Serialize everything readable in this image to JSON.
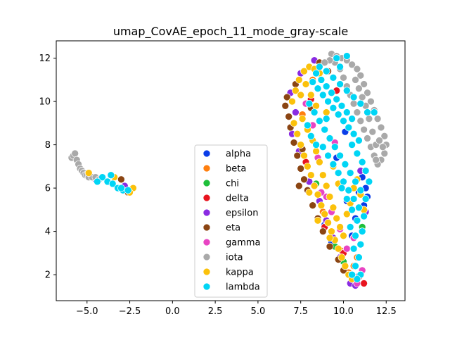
{
  "chart_data": {
    "type": "scatter",
    "title": "umap_CovAE_epoch_11_mode_gray-scale",
    "xlabel": "",
    "ylabel": "",
    "xlim": [
      -6.8,
      13.6
    ],
    "ylim": [
      0.8,
      12.8
    ],
    "xticks": [
      -5.0,
      -2.5,
      0.0,
      2.5,
      5.0,
      7.5,
      10.0,
      12.5
    ],
    "xtick_labels": [
      "−5.0",
      "−2.5",
      "0.0",
      "2.5",
      "5.0",
      "7.5",
      "10.0",
      "12.5"
    ],
    "yticks": [
      2,
      4,
      6,
      8,
      10,
      12
    ],
    "ytick_labels": [
      "2",
      "4",
      "6",
      "8",
      "10",
      "12"
    ],
    "grid": false,
    "legend_position": "lower-center",
    "series": [
      {
        "name": "alpha",
        "color": "#0a3de8",
        "points": [
          [
            11.1,
            6.5
          ],
          [
            10.9,
            5.8
          ],
          [
            10.7,
            4.6
          ],
          [
            11.2,
            5.2
          ],
          [
            10.5,
            3.8
          ],
          [
            10.8,
            1.9
          ],
          [
            11.3,
            6.0
          ],
          [
            10.2,
            5.4
          ],
          [
            9.6,
            7.4
          ],
          [
            10.1,
            8.6
          ],
          [
            11.0,
            9.1
          ],
          [
            8.9,
            4.3
          ],
          [
            9.3,
            3.5
          ],
          [
            11.4,
            5.6
          ]
        ]
      },
      {
        "name": "beta",
        "color": "#ff7f0e",
        "points": [
          [
            10.6,
            2.4
          ],
          [
            10.3,
            2.1
          ],
          [
            9.9,
            3.1
          ],
          [
            8.8,
            4.9
          ],
          [
            7.6,
            9.4
          ],
          [
            8.2,
            11.0
          ],
          [
            10.8,
            2.8
          ]
        ]
      },
      {
        "name": "chi",
        "color": "#1fbf3a",
        "points": [
          [
            9.5,
            3.3
          ],
          [
            10.0,
            2.6
          ],
          [
            8.4,
            6.2
          ],
          [
            11.1,
            4.2
          ]
        ]
      },
      {
        "name": "delta",
        "color": "#e8141e",
        "points": [
          [
            11.2,
            1.6
          ],
          [
            10.9,
            1.9
          ],
          [
            10.0,
            3.0
          ],
          [
            8.9,
            4.2
          ],
          [
            8.1,
            10.1
          ],
          [
            9.6,
            10.5
          ],
          [
            7.8,
            7.2
          ],
          [
            -2.3,
            6.0
          ],
          [
            -2.5,
            5.9
          ]
        ]
      },
      {
        "name": "epsilon",
        "color": "#8a2be2",
        "points": [
          [
            6.9,
            10.4
          ],
          [
            7.0,
            8.5
          ],
          [
            7.5,
            11.3
          ],
          [
            7.2,
            9.5
          ],
          [
            7.4,
            7.7
          ],
          [
            8.0,
            6.3
          ],
          [
            8.6,
            5.4
          ],
          [
            9.0,
            4.5
          ],
          [
            9.4,
            3.7
          ],
          [
            9.8,
            2.8
          ],
          [
            10.4,
            1.6
          ],
          [
            10.7,
            1.5
          ],
          [
            11.0,
            6.8
          ],
          [
            11.3,
            4.9
          ],
          [
            8.3,
            11.9
          ],
          [
            -2.8,
            6.1
          ],
          [
            -4.5,
            6.4
          ]
        ]
      },
      {
        "name": "eta",
        "color": "#8b4513",
        "points": [
          [
            6.6,
            9.8
          ],
          [
            6.8,
            9.3
          ],
          [
            6.9,
            8.8
          ],
          [
            7.1,
            8.1
          ],
          [
            7.3,
            7.5
          ],
          [
            7.5,
            6.9
          ],
          [
            7.7,
            6.4
          ],
          [
            7.9,
            5.9
          ],
          [
            8.2,
            5.2
          ],
          [
            8.5,
            4.6
          ],
          [
            8.8,
            4.0
          ],
          [
            9.2,
            3.3
          ],
          [
            9.7,
            2.7
          ],
          [
            10.0,
            2.2
          ],
          [
            6.7,
            10.2
          ],
          [
            7.2,
            10.8
          ],
          [
            7.4,
            6.1
          ],
          [
            7.6,
            7.8
          ],
          [
            8.1,
            9.7
          ],
          [
            8.6,
            11.8
          ],
          [
            9.1,
            11.4
          ],
          [
            -3.0,
            6.4
          ],
          [
            -2.6,
            5.8
          ]
        ]
      },
      {
        "name": "gamma",
        "color": "#e844c3",
        "points": [
          [
            9.0,
            5.6
          ],
          [
            8.7,
            5.8
          ],
          [
            9.3,
            4.9
          ],
          [
            9.8,
            4.1
          ],
          [
            10.2,
            3.2
          ],
          [
            10.8,
            1.6
          ],
          [
            11.1,
            2.2
          ],
          [
            8.5,
            7.4
          ],
          [
            8.2,
            8.9
          ],
          [
            7.8,
            9.9
          ],
          [
            9.5,
            8.1
          ],
          [
            10.6,
            3.7
          ]
        ]
      },
      {
        "name": "iota",
        "color": "#a9a9a9",
        "points": [
          [
            9.3,
            12.2
          ],
          [
            9.6,
            12.1
          ],
          [
            9.9,
            12.0
          ],
          [
            10.2,
            11.9
          ],
          [
            10.5,
            11.7
          ],
          [
            10.8,
            11.5
          ],
          [
            11.0,
            11.2
          ],
          [
            11.2,
            10.8
          ],
          [
            11.4,
            10.4
          ],
          [
            11.6,
            10.0
          ],
          [
            11.8,
            9.6
          ],
          [
            12.0,
            9.2
          ],
          [
            12.2,
            8.8
          ],
          [
            12.4,
            8.4
          ],
          [
            12.5,
            8.0
          ],
          [
            12.4,
            7.6
          ],
          [
            12.2,
            7.3
          ],
          [
            12.0,
            7.1
          ],
          [
            11.8,
            7.5
          ],
          [
            11.6,
            7.9
          ],
          [
            11.4,
            8.3
          ],
          [
            11.2,
            8.7
          ],
          [
            11.0,
            9.1
          ],
          [
            10.8,
            9.5
          ],
          [
            10.6,
            9.9
          ],
          [
            10.4,
            10.3
          ],
          [
            10.2,
            10.7
          ],
          [
            10.0,
            11.1
          ],
          [
            9.8,
            11.5
          ],
          [
            9.5,
            11.8
          ],
          [
            9.2,
            11.9
          ],
          [
            8.9,
            11.8
          ],
          [
            11.9,
            8.0
          ],
          [
            12.1,
            8.2
          ],
          [
            11.7,
            8.6
          ],
          [
            11.5,
            9.2
          ],
          [
            11.3,
            9.8
          ],
          [
            11.1,
            10.2
          ],
          [
            10.9,
            10.6
          ],
          [
            10.7,
            11.0
          ],
          [
            12.3,
            7.9
          ],
          [
            11.9,
            7.3
          ],
          [
            -5.9,
            7.4
          ],
          [
            -5.8,
            7.5
          ],
          [
            -5.7,
            7.6
          ],
          [
            -5.6,
            7.3
          ],
          [
            -5.5,
            7.1
          ],
          [
            -5.4,
            6.9
          ],
          [
            -5.3,
            6.8
          ],
          [
            -5.2,
            6.7
          ],
          [
            -5.1,
            6.6
          ],
          [
            -5.0,
            6.6
          ],
          [
            -4.9,
            6.5
          ],
          [
            -4.7,
            6.5
          ],
          [
            -4.5,
            6.5
          ],
          [
            -4.3,
            6.4
          ]
        ]
      },
      {
        "name": "kappa",
        "color": "#fbc10b",
        "points": [
          [
            7.0,
            10.0
          ],
          [
            7.2,
            10.5
          ],
          [
            7.4,
            11.0
          ],
          [
            7.7,
            11.4
          ],
          [
            8.0,
            11.6
          ],
          [
            8.3,
            11.5
          ],
          [
            8.6,
            11.3
          ],
          [
            7.1,
            9.0
          ],
          [
            7.3,
            8.5
          ],
          [
            7.5,
            8.0
          ],
          [
            7.7,
            7.5
          ],
          [
            7.9,
            7.0
          ],
          [
            8.1,
            6.6
          ],
          [
            8.3,
            6.1
          ],
          [
            8.5,
            5.7
          ],
          [
            8.7,
            5.2
          ],
          [
            8.9,
            4.8
          ],
          [
            9.1,
            4.4
          ],
          [
            9.3,
            4.0
          ],
          [
            9.5,
            3.6
          ],
          [
            9.7,
            3.2
          ],
          [
            9.9,
            2.8
          ],
          [
            10.1,
            2.4
          ],
          [
            10.3,
            2.0
          ],
          [
            10.5,
            1.8
          ],
          [
            7.6,
            9.2
          ],
          [
            7.9,
            8.7
          ],
          [
            8.2,
            8.2
          ],
          [
            8.4,
            7.7
          ],
          [
            8.6,
            7.2
          ],
          [
            8.8,
            6.6
          ],
          [
            9.0,
            6.1
          ],
          [
            9.2,
            5.6
          ],
          [
            9.4,
            5.1
          ],
          [
            9.6,
            4.6
          ],
          [
            9.8,
            4.2
          ],
          [
            10.0,
            3.8
          ],
          [
            7.5,
            10.3
          ],
          [
            7.8,
            10.8
          ],
          [
            8.1,
            10.3
          ],
          [
            8.4,
            9.8
          ],
          [
            9.0,
            9.5
          ],
          [
            9.4,
            7.0
          ],
          [
            9.7,
            6.2
          ],
          [
            10.2,
            4.8
          ],
          [
            10.4,
            5.3
          ],
          [
            10.6,
            6.0
          ],
          [
            10.8,
            6.4
          ],
          [
            11.0,
            5.7
          ],
          [
            11.2,
            5.0
          ],
          [
            8.0,
            5.8
          ],
          [
            8.5,
            4.5
          ],
          [
            9.2,
            3.7
          ],
          [
            -2.3,
            6.0
          ],
          [
            -2.5,
            5.8
          ],
          [
            -4.9,
            6.7
          ],
          [
            -3.4,
            6.5
          ]
        ]
      },
      {
        "name": "lambda",
        "color": "#00d5f5",
        "points": [
          [
            8.2,
            10.9
          ],
          [
            8.5,
            10.6
          ],
          [
            8.8,
            10.3
          ],
          [
            9.1,
            10.0
          ],
          [
            9.4,
            9.7
          ],
          [
            9.7,
            9.4
          ],
          [
            10.0,
            9.1
          ],
          [
            10.3,
            8.8
          ],
          [
            10.6,
            8.5
          ],
          [
            10.9,
            8.2
          ],
          [
            8.4,
            11.3
          ],
          [
            8.7,
            11.0
          ],
          [
            9.0,
            10.7
          ],
          [
            9.3,
            10.4
          ],
          [
            9.6,
            10.1
          ],
          [
            9.9,
            9.8
          ],
          [
            10.2,
            9.5
          ],
          [
            10.5,
            9.2
          ],
          [
            8.6,
            11.6
          ],
          [
            9.0,
            11.4
          ],
          [
            9.4,
            11.1
          ],
          [
            9.8,
            10.8
          ],
          [
            10.2,
            10.5
          ],
          [
            10.6,
            10.2
          ],
          [
            11.0,
            9.9
          ],
          [
            11.4,
            9.5
          ],
          [
            8.0,
            9.9
          ],
          [
            8.3,
            9.5
          ],
          [
            8.6,
            9.1
          ],
          [
            8.9,
            8.7
          ],
          [
            9.2,
            8.3
          ],
          [
            9.5,
            7.9
          ],
          [
            9.8,
            7.5
          ],
          [
            10.1,
            7.1
          ],
          [
            10.4,
            6.7
          ],
          [
            10.7,
            6.3
          ],
          [
            11.0,
            5.9
          ],
          [
            11.3,
            5.5
          ],
          [
            8.8,
            7.9
          ],
          [
            9.1,
            7.5
          ],
          [
            9.4,
            7.1
          ],
          [
            9.7,
            6.7
          ],
          [
            10.0,
            6.3
          ],
          [
            10.3,
            5.9
          ],
          [
            10.6,
            5.5
          ],
          [
            10.9,
            5.1
          ],
          [
            11.2,
            4.7
          ],
          [
            9.9,
            6.0
          ],
          [
            10.2,
            5.5
          ],
          [
            10.5,
            5.0
          ],
          [
            10.8,
            4.5
          ],
          [
            11.1,
            4.0
          ],
          [
            10.4,
            4.2
          ],
          [
            10.7,
            3.8
          ],
          [
            11.0,
            3.4
          ],
          [
            10.6,
            3.2
          ],
          [
            10.9,
            2.8
          ],
          [
            10.7,
            2.4
          ],
          [
            11.0,
            2.0
          ],
          [
            10.8,
            1.8
          ],
          [
            10.5,
            2.0
          ],
          [
            11.3,
            6.8
          ],
          [
            11.5,
            6.3
          ],
          [
            11.1,
            7.2
          ],
          [
            10.8,
            7.6
          ],
          [
            10.5,
            8.0
          ],
          [
            10.2,
            12.1
          ],
          [
            9.8,
            11.6
          ],
          [
            9.6,
            12.0
          ],
          [
            11.8,
            9.5
          ],
          [
            7.9,
            8.9
          ],
          [
            8.1,
            8.4
          ],
          [
            8.4,
            8.0
          ],
          [
            9.0,
            9.2
          ],
          [
            -4.1,
            6.5
          ],
          [
            -3.8,
            6.3
          ],
          [
            -3.5,
            6.2
          ],
          [
            -3.2,
            6.0
          ],
          [
            -2.9,
            5.9
          ],
          [
            -2.6,
            5.9
          ],
          [
            -3.6,
            6.6
          ],
          [
            -4.4,
            6.3
          ],
          [
            -3.0,
            6.0
          ]
        ]
      }
    ]
  }
}
